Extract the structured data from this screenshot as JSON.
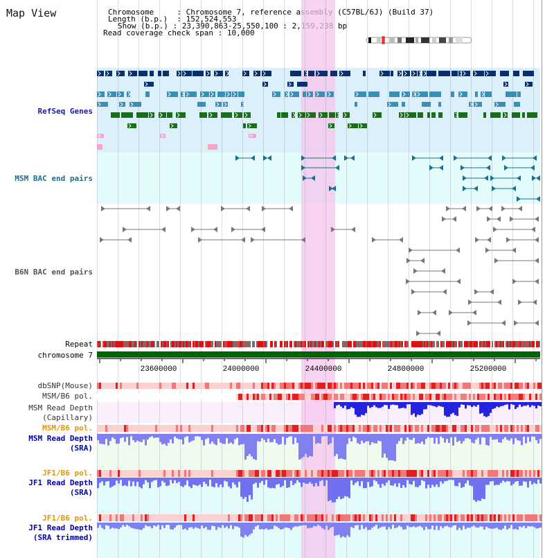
{
  "app": {
    "title": "Map View"
  },
  "header": {
    "chromosome_label": "Chromosome",
    "chromosome_value": "Chromosome 7, reference assembly (C57BL/6J) (Build 37)",
    "length_label": "Length (b.p.)",
    "length_value": "152,524,553",
    "show_label": "Show (b.p.)",
    "show_value": "23,390,863-25,550,100 : 2,159,238 bp",
    "span_label": "Read coverage check span",
    "span_value": "10,000"
  },
  "tracks": {
    "refseq": {
      "label": "RefSeq Genes"
    },
    "msm_bac": {
      "label": "MSM BAC end pairs"
    },
    "b6n_bac": {
      "label": "B6N BAC end pairs"
    },
    "repeat": {
      "label": "Repeat"
    },
    "chromosome": {
      "label": "chromosome 7"
    },
    "dbsnp": {
      "label": "dbSNP(Mouse)"
    },
    "msm_b6_pol_1": {
      "label": "MSM/B6 pol."
    },
    "msm_depth_cap": {
      "label1": "MSM Read Depth",
      "label2": "(Capillary)"
    },
    "msm_b6_pol_2": {
      "label": "MSM/B6 pol."
    },
    "msm_depth_sra": {
      "label1": "MSM Read Depth",
      "label2": "(SRA)"
    },
    "jf1_b6_pol_1": {
      "label": "JF1/B6 pol."
    },
    "jf1_depth_sra": {
      "label1": "JF1 Read Depth",
      "label2": "(SRA)"
    },
    "jf1_b6_pol_2": {
      "label": "JF1/B6 pol."
    },
    "jf1_depth_trim": {
      "label1": "JF1 Read Depth",
      "label2": "(SRA trimmed)"
    }
  },
  "axis": {
    "ticks": [
      "23600000",
      "24000000",
      "24400000",
      "24800000",
      "25200000"
    ]
  },
  "colors": {
    "highlight": "#f7c4ee",
    "refseq_bg": "#dcf0fb",
    "msm_bg": "#e4fbfb",
    "navy": "#0a2f6e",
    "teal": "#3b8fb5",
    "green": "#1a6e1a",
    "chrom_green": "#006400",
    "orange_label": "#e69500",
    "blue_label": "#0000aa"
  }
}
